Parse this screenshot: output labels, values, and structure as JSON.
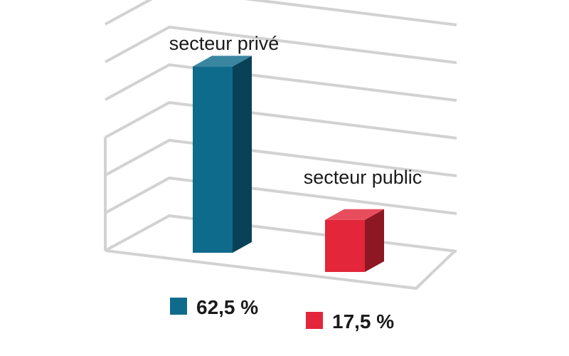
{
  "chart_data": {
    "type": "bar",
    "categories": [
      "secteur privé",
      "secteur public"
    ],
    "values": [
      62.5,
      17.5
    ],
    "value_labels": [
      "62,5 %",
      "17,5 %"
    ],
    "colors": [
      "#0f6b8c",
      "#e3263a"
    ],
    "title": "",
    "xlabel": "",
    "ylabel": "",
    "ylim": [
      0,
      80
    ],
    "grid": true,
    "legend": "bottom",
    "style": "3d"
  }
}
